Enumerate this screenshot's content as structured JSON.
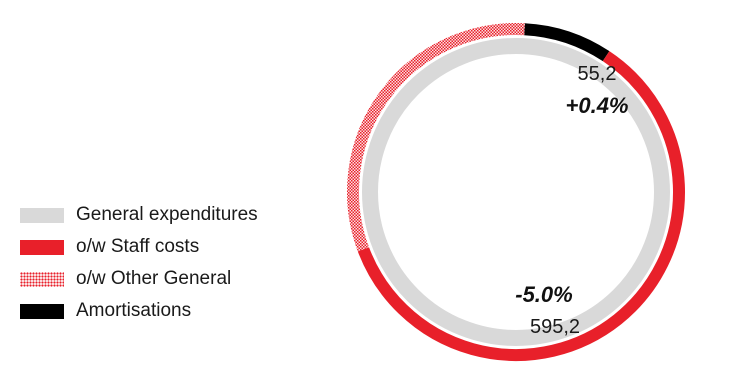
{
  "chart_data": {
    "type": "pie",
    "title": "",
    "legend_position": "left",
    "series": [
      {
        "name": "General expenditures",
        "color": "#d9d9d9",
        "pattern": "solid"
      },
      {
        "name": "o/w Staff costs",
        "color": "#e8202a",
        "pattern": "solid"
      },
      {
        "name": "o/w Other General",
        "color": "#e8202a",
        "pattern": "checkered"
      },
      {
        "name": "Amortisations",
        "color": "#000000",
        "pattern": "solid"
      }
    ],
    "inner_ring": [
      {
        "series": "General expenditures",
        "value": 595.2
      }
    ],
    "outer_ring": [
      {
        "series": "Amortisations",
        "value": 55.2
      },
      {
        "series": "o/w Staff costs",
        "value": 390.0
      },
      {
        "series": "o/w Other General",
        "value": 205.2
      }
    ],
    "labels": [
      {
        "value": "55,2",
        "change": "+0.4%",
        "refers_to": "Amortisations"
      },
      {
        "value": "595,2",
        "change": "-5.0%",
        "refers_to": "General expenditures"
      }
    ]
  }
}
